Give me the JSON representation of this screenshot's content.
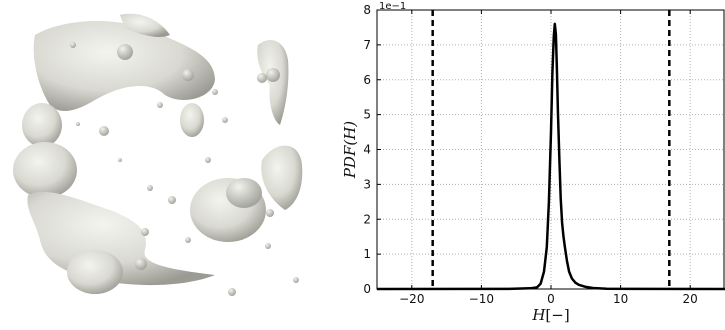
{
  "render": {
    "description_icon": "isosurface-render"
  },
  "chart_data": {
    "type": "line",
    "title": "",
    "xlabel_var": "H",
    "xlabel_unit": "[−]",
    "ylabel": "PDF(H)",
    "y_scale_label": "1e−1",
    "xlim": [
      -25,
      25
    ],
    "ylim": [
      0,
      8
    ],
    "xticks": [
      -20,
      -10,
      0,
      10,
      20
    ],
    "xtick_labels": [
      "−20",
      "−10",
      "0",
      "10",
      "20"
    ],
    "yticks": [
      0,
      1,
      2,
      3,
      4,
      5,
      6,
      7,
      8
    ],
    "ytick_labels": [
      "0",
      "1",
      "2",
      "3",
      "4",
      "5",
      "6",
      "7",
      "8"
    ],
    "grid": true,
    "series": [
      {
        "style": "solid",
        "color": "#000000",
        "x": [
          -25,
          -6,
          -3,
          -2,
          -1.5,
          -1,
          -0.6,
          -0.3,
          0,
          0.2,
          0.4,
          0.55,
          0.7,
          0.85,
          1.0,
          1.2,
          1.4,
          1.6,
          1.8,
          2.0,
          2.3,
          2.6,
          3.0,
          3.5,
          4.0,
          5.0,
          6.0,
          8.0,
          12.0,
          25
        ],
        "y": [
          0,
          0.003,
          0.02,
          0.05,
          0.15,
          0.5,
          1.2,
          2.5,
          4.5,
          6.2,
          7.25,
          7.6,
          7.3,
          6.3,
          5.0,
          3.7,
          2.6,
          1.9,
          1.5,
          1.2,
          0.8,
          0.5,
          0.3,
          0.18,
          0.12,
          0.06,
          0.03,
          0.01,
          0.003,
          0
        ]
      }
    ],
    "vlines": [
      {
        "x": -17,
        "style": "dashed",
        "color": "#000000"
      },
      {
        "x": 17,
        "style": "dashed",
        "color": "#000000"
      }
    ]
  }
}
